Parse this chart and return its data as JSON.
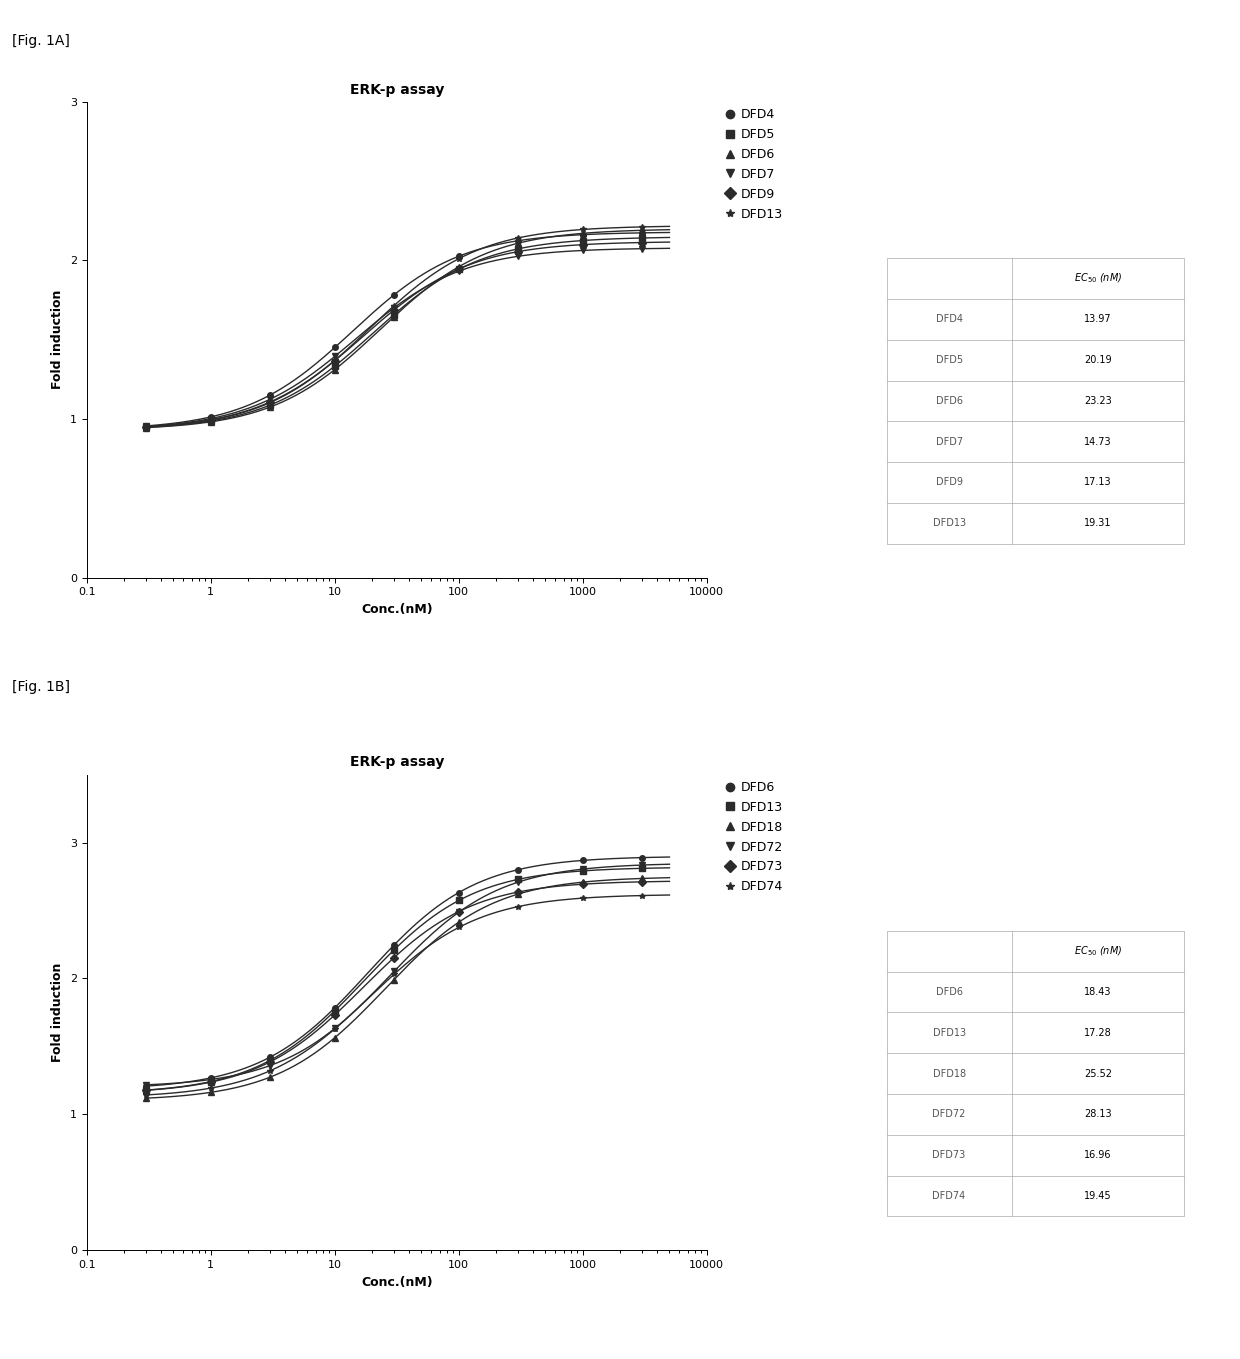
{
  "fig1A": {
    "title": "ERK-p assay",
    "xlabel": "Conc.(nM)",
    "ylabel": "Fold induction",
    "label_text": "[Fig. 1A]",
    "series": [
      {
        "name": "DFD4",
        "ec50": 13.97,
        "bottom": 0.93,
        "top": 2.18,
        "hill": 1.0
      },
      {
        "name": "DFD5",
        "ec50": 20.19,
        "bottom": 0.93,
        "top": 2.15,
        "hill": 1.0
      },
      {
        "name": "DFD6",
        "ec50": 23.23,
        "bottom": 0.93,
        "top": 2.2,
        "hill": 1.0
      },
      {
        "name": "DFD7",
        "ec50": 14.73,
        "bottom": 0.93,
        "top": 2.08,
        "hill": 1.0
      },
      {
        "name": "DFD9",
        "ec50": 17.13,
        "bottom": 0.93,
        "top": 2.12,
        "hill": 1.0
      },
      {
        "name": "DFD13",
        "ec50": 19.31,
        "bottom": 0.93,
        "top": 2.22,
        "hill": 1.0
      }
    ],
    "table_rows": [
      [
        "DFD4",
        "13.97"
      ],
      [
        "DFD5",
        "20.19"
      ],
      [
        "DFD6",
        "23.23"
      ],
      [
        "DFD7",
        "14.73"
      ],
      [
        "DFD9",
        "17.13"
      ],
      [
        "DFD13",
        "19.31"
      ]
    ],
    "xdata": [
      0.3,
      1,
      3,
      10,
      30,
      100,
      300,
      1000,
      3000
    ],
    "ylim": [
      0,
      3.0
    ],
    "yticks": [
      0,
      1,
      2,
      3
    ],
    "xmin": 0.3,
    "xmax": 5000
  },
  "fig1B": {
    "title": "ERK-p assay",
    "xlabel": "Conc.(nM)",
    "ylabel": "Fold induction",
    "label_text": "[Fig. 1B]",
    "series": [
      {
        "name": "DFD6",
        "ec50": 18.43,
        "bottom": 1.18,
        "top": 2.9,
        "hill": 1.0
      },
      {
        "name": "DFD13",
        "ec50": 17.28,
        "bottom": 1.15,
        "top": 2.82,
        "hill": 1.0
      },
      {
        "name": "DFD18",
        "ec50": 25.52,
        "bottom": 1.1,
        "top": 2.75,
        "hill": 1.0
      },
      {
        "name": "DFD72",
        "ec50": 28.13,
        "bottom": 1.2,
        "top": 2.85,
        "hill": 1.0
      },
      {
        "name": "DFD73",
        "ec50": 16.96,
        "bottom": 1.15,
        "top": 2.72,
        "hill": 1.0
      },
      {
        "name": "DFD74",
        "ec50": 19.45,
        "bottom": 1.12,
        "top": 2.62,
        "hill": 1.0
      }
    ],
    "table_rows": [
      [
        "DFD6",
        "18.43"
      ],
      [
        "DFD13",
        "17.28"
      ],
      [
        "DFD18",
        "25.52"
      ],
      [
        "DFD72",
        "28.13"
      ],
      [
        "DFD73",
        "16.96"
      ],
      [
        "DFD74",
        "19.45"
      ]
    ],
    "xdata": [
      0.3,
      1,
      3,
      10,
      30,
      100,
      300,
      1000,
      3000
    ],
    "ylim": [
      0,
      3.5
    ],
    "yticks": [
      0,
      1,
      2,
      3
    ],
    "xmin": 0.3,
    "xmax": 5000
  },
  "markers": [
    "o",
    "s",
    "^",
    "v",
    "D",
    "*"
  ],
  "line_color": "#2b2b2b",
  "marker_color": "#2b2b2b",
  "marker_size": 4,
  "line_width": 1.0,
  "font_size": 9,
  "title_font_size": 10,
  "tick_font_size": 8,
  "table_font_size": 7,
  "legend_font_size": 9
}
